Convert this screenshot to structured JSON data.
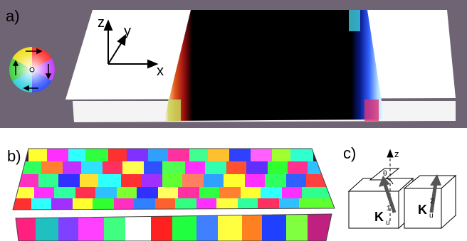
{
  "figure": {
    "panels": [
      {
        "label": "a)"
      },
      {
        "label": "b)"
      },
      {
        "label": "c)"
      }
    ],
    "panel_a": {
      "axes": {
        "z": "z",
        "y": "y",
        "x": "x"
      },
      "background_color": "#6e6474",
      "slab_color": "#ffffff",
      "wall_color": "#000000"
    },
    "panel_c": {
      "axis": "z",
      "angle": "θ",
      "k1_main": "K",
      "k1_sub": "u",
      "k1_sup": "1",
      "k2_main": "K",
      "k2_sub": "u",
      "k2_sup": "2"
    }
  }
}
